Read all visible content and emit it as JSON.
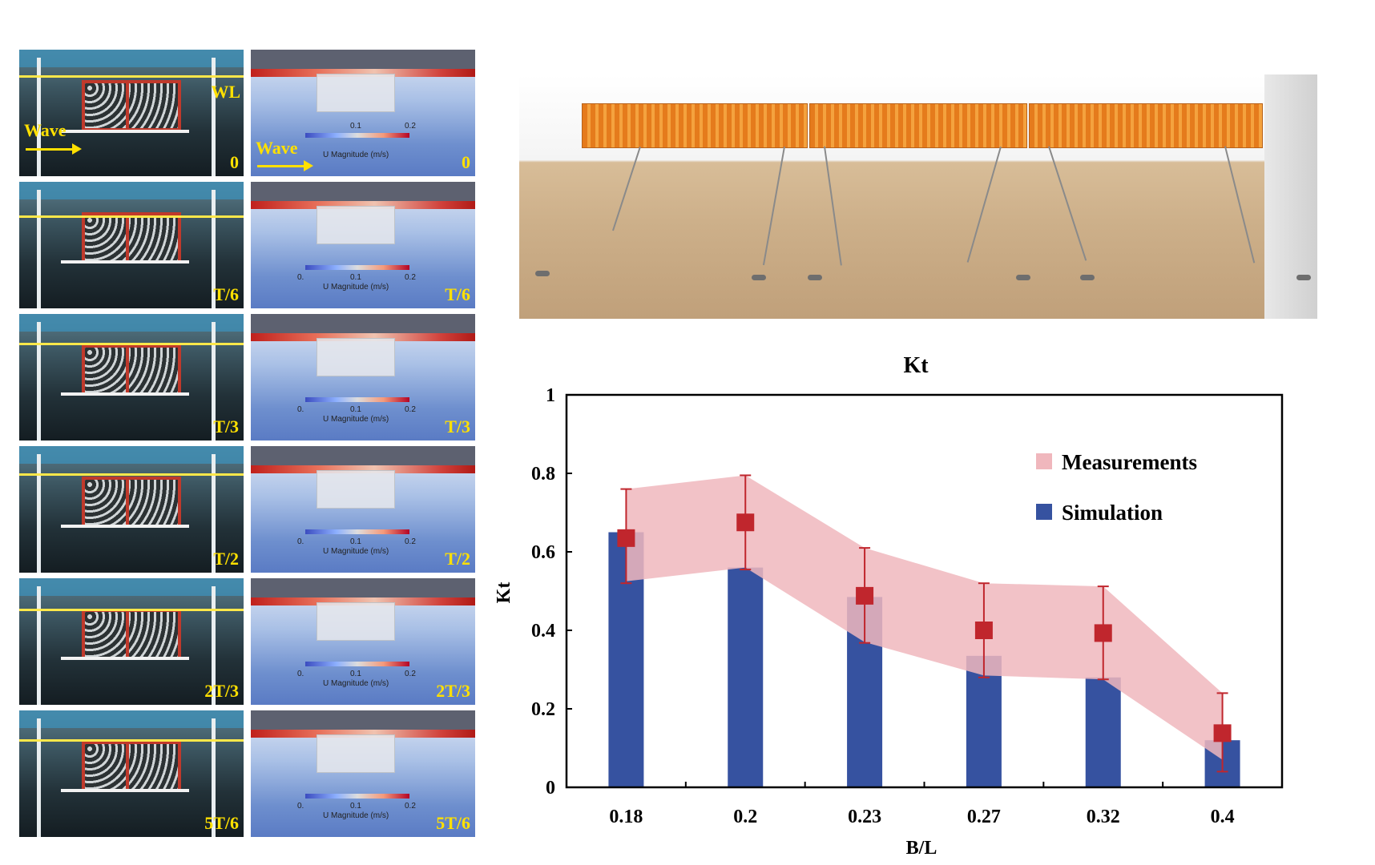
{
  "panels": {
    "time_labels": [
      "0",
      "T/6",
      "T/3",
      "T/2",
      "2T/3",
      "5T/6"
    ],
    "wl_label": "WL",
    "wave_label": "Wave",
    "colorbar": {
      "title": "U Magnitude (m/s)",
      "min": "0.",
      "mid": "0.1",
      "max": "0.2"
    }
  },
  "chart_data": {
    "type": "bar",
    "title": "Kt",
    "xlabel": "B/L",
    "ylabel": "Kt",
    "categories": [
      "0.18",
      "0.2",
      "0.23",
      "0.27",
      "0.32",
      "0.4"
    ],
    "ylim": [
      0,
      1
    ],
    "yticks": [
      "0",
      "0.2",
      "0.4",
      "0.6",
      "0.8",
      "1"
    ],
    "series": [
      {
        "name": "Simulation",
        "type": "bar",
        "color": "#3652a0",
        "values": [
          0.65,
          0.56,
          0.485,
          0.335,
          0.28,
          0.12
        ]
      },
      {
        "name": "Measurements",
        "type": "band+points",
        "color": "#f0b7bd",
        "marker_color": "#c0262d",
        "values": [
          0.635,
          0.675,
          0.488,
          0.4,
          0.393,
          0.138
        ],
        "error_upper": [
          0.76,
          0.795,
          0.61,
          0.52,
          0.512,
          0.24
        ],
        "error_lower": [
          0.52,
          0.555,
          0.368,
          0.28,
          0.275,
          0.04
        ],
        "band_upper": [
          0.76,
          0.795,
          0.61,
          0.52,
          0.512,
          0.24
        ],
        "band_lower": [
          0.525,
          0.56,
          0.37,
          0.285,
          0.275,
          0.07
        ]
      }
    ],
    "legend_position": "top-right",
    "grid": false
  }
}
